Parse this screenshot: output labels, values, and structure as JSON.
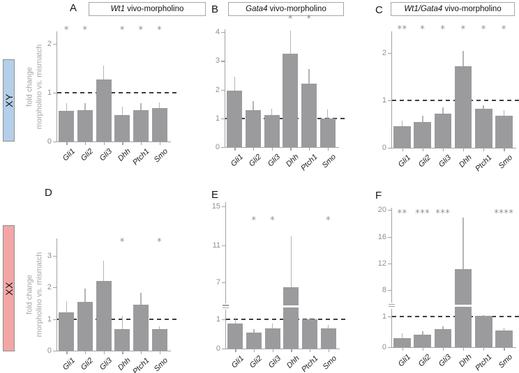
{
  "figure": {
    "ylabel_line1": "fold change",
    "ylabel_line2": "morpholino vs. mismatch",
    "row_labels": [
      {
        "label": "XY",
        "fill": "#b3cfe9",
        "border": "#8f8f8f"
      },
      {
        "label": "XX",
        "fill": "#f2a6a6",
        "border": "#8f8f8f"
      }
    ],
    "categories": [
      "Gli1",
      "Gli2",
      "Gli3",
      "Dhh",
      "Ptch1",
      "Smo"
    ],
    "bar_color": "#9b9b9d",
    "error_color": "#b4b4b6",
    "axis_color": "#a2a2a4",
    "tick_label_color": "#8d8f91",
    "star_color": "#8f8f91",
    "dash_color": "#3e3e3e"
  },
  "chart_data": [
    {
      "id": "A",
      "type": "bar",
      "letter": "A",
      "title_italic": "Wt1",
      "title_rest": " vivo-morpholino",
      "row": "XY",
      "categories": [
        "Gli1",
        "Gli2",
        "Gli3",
        "Dhh",
        "Ptch1",
        "Smo"
      ],
      "values": [
        0.63,
        0.64,
        1.27,
        0.55,
        0.65,
        0.68
      ],
      "errors_upper": [
        0.78,
        0.78,
        1.56,
        0.72,
        0.78,
        0.8
      ],
      "stars": [
        "*",
        "*",
        "",
        "*",
        "*",
        "*"
      ],
      "yticks": [
        {
          "v": 0,
          "pos": 0
        },
        {
          "v": 1,
          "pos": 0.443
        },
        {
          "v": 2,
          "pos": 0.886
        }
      ],
      "reference_line": 1,
      "star_row_pos": 0.97,
      "break_pos": null,
      "break_bar": null
    },
    {
      "id": "B",
      "type": "bar",
      "letter": "B",
      "title_italic": "Gata4",
      "title_rest": " vivo-morpholino",
      "row": "XY",
      "categories": [
        "Gli1",
        "Gli2",
        "Gli3",
        "Dhh",
        "Ptch1",
        "Smo"
      ],
      "values": [
        1.97,
        1.3,
        1.12,
        3.25,
        2.21,
        1.0
      ],
      "errors_upper": [
        2.45,
        1.6,
        1.34,
        4.05,
        2.72,
        1.33
      ],
      "stars": [
        "",
        "",
        "",
        "*",
        "*",
        ""
      ],
      "yticks": [
        {
          "v": 0,
          "pos": 0
        },
        {
          "v": 1,
          "pos": 0.241
        },
        {
          "v": 2,
          "pos": 0.486
        },
        {
          "v": 3,
          "pos": 0.731
        },
        {
          "v": 4,
          "pos": 0.976
        }
      ],
      "reference_line": 1,
      "star_row_pos": 1.05,
      "break_pos": null,
      "break_bar": null
    },
    {
      "id": "C",
      "type": "bar",
      "letter": "C",
      "title_italic": "Wt1/Gata4",
      "title_rest": " vivo-morpholino",
      "row": "XY",
      "categories": [
        "Gli1",
        "Gli2",
        "Gli3",
        "Dhh",
        "Ptch1",
        "Smo"
      ],
      "values": [
        0.45,
        0.55,
        0.72,
        1.72,
        0.82,
        0.68
      ],
      "errors_upper": [
        0.58,
        0.68,
        0.85,
        2.04,
        0.9,
        0.8
      ],
      "stars": [
        "**",
        "*",
        "*",
        "*",
        "*",
        "*"
      ],
      "yticks": [
        {
          "v": 0,
          "pos": 0
        },
        {
          "v": 1,
          "pos": 0.407
        },
        {
          "v": 2,
          "pos": 0.814
        }
      ],
      "reference_line": 1,
      "star_row_pos": 0.975,
      "break_pos": null,
      "break_bar": null
    },
    {
      "id": "D",
      "type": "bar",
      "letter": "D",
      "title_italic": null,
      "title_rest": null,
      "row": "XX",
      "categories": [
        "Gli1",
        "Gli2",
        "Gli3",
        "Dhh",
        "Ptch1",
        "Smo"
      ],
      "values": [
        1.22,
        1.55,
        2.2,
        0.68,
        1.45,
        0.68
      ],
      "errors_upper": [
        1.56,
        1.95,
        2.85,
        1.1,
        1.82,
        0.78
      ],
      "stars": [
        "",
        "",
        "",
        "*",
        "",
        "*"
      ],
      "yticks": [
        {
          "v": 0,
          "pos": 0
        },
        {
          "v": 1,
          "pos": 0.28
        },
        {
          "v": 2,
          "pos": 0.565
        },
        {
          "v": 3,
          "pos": 0.845
        }
      ],
      "reference_line": 1,
      "star_row_pos": 0.925,
      "break_pos": null,
      "break_bar": null
    },
    {
      "id": "E",
      "type": "bar",
      "letter": "E",
      "title_italic": null,
      "title_rest": null,
      "row": "XX",
      "categories": [
        "Gli1",
        "Gli2",
        "Gli3",
        "Dhh",
        "Ptch1",
        "Smo"
      ],
      "values": [
        0.85,
        0.55,
        0.7,
        6.2,
        1.0,
        0.7
      ],
      "errors_upper": [
        1.0,
        0.66,
        0.85,
        11.9,
        1.25,
        0.82
      ],
      "stars": [
        "",
        "*",
        "*",
        "",
        "",
        "*"
      ],
      "yticks": [
        {
          "v": 0,
          "pos": 0
        },
        {
          "v": 1,
          "pos": 0.2
        },
        {
          "v": 7,
          "pos": 0.452
        },
        {
          "v": 11,
          "pos": 0.705
        },
        {
          "v": 15,
          "pos": 0.971
        }
      ],
      "reference_line": 1,
      "star_row_pos": 0.843,
      "break_pos": 0.286,
      "break_bar": 3
    },
    {
      "id": "F",
      "type": "bar",
      "letter": "F",
      "title_italic": null,
      "title_rest": null,
      "row": "XX",
      "categories": [
        "Gli1",
        "Gli2",
        "Gli3",
        "Dhh",
        "Ptch1",
        "Smo"
      ],
      "values": [
        0.3,
        0.42,
        0.58,
        11.2,
        1.1,
        0.55
      ],
      "errors_upper": [
        0.45,
        0.52,
        0.68,
        18.9,
        1.35,
        0.63
      ],
      "stars": [
        "**",
        "***",
        "***",
        "",
        "",
        "****"
      ],
      "yticks": [
        {
          "v": 0,
          "pos": 0
        },
        {
          "v": 1,
          "pos": 0.22
        },
        {
          "v": 8,
          "pos": 0.41
        },
        {
          "v": 12,
          "pos": 0.6
        },
        {
          "v": 16,
          "pos": 0.79
        },
        {
          "v": 20,
          "pos": 0.985
        }
      ],
      "reference_line": 1,
      "star_row_pos": 0.925,
      "break_pos": 0.3,
      "break_bar": 3
    }
  ]
}
